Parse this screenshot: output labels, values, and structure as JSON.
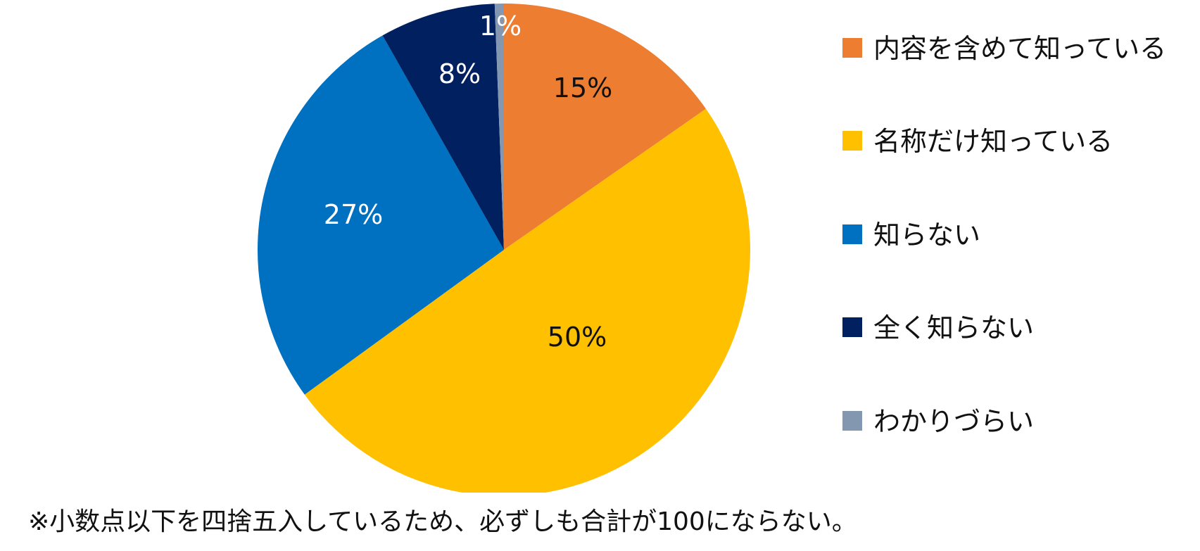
{
  "chart_data": {
    "type": "pie",
    "title": "",
    "categories": [
      "内容を含めて知っている",
      "名称だけ知っている",
      "知らない",
      "全く知らない",
      "わかりづらい"
    ],
    "values": [
      15,
      50,
      27,
      8,
      1
    ],
    "value_labels": [
      "15%",
      "50%",
      "27%",
      "8%",
      "1%"
    ],
    "colors": [
      "#ED7D31",
      "#FFC000",
      "#0070C0",
      "#002060",
      "#8497B0"
    ],
    "label_colors": [
      "#111111",
      "#111111",
      "#ffffff",
      "#ffffff",
      "#ffffff"
    ],
    "start_angle_deg": 0,
    "direction": "clockwise",
    "legend_position": "right"
  },
  "legend": {
    "items": [
      {
        "label": "内容を含めて知っている",
        "color": "#ED7D31"
      },
      {
        "label": "名称だけ知っている",
        "color": "#FFC000"
      },
      {
        "label": "知らない",
        "color": "#0070C0"
      },
      {
        "label": "全く知らない",
        "color": "#002060"
      },
      {
        "label": "わかりづらい",
        "color": "#8497B0"
      }
    ]
  },
  "footnote": "※小数点以下を四捨五入しているため、必ずしも合計が100にならない。"
}
